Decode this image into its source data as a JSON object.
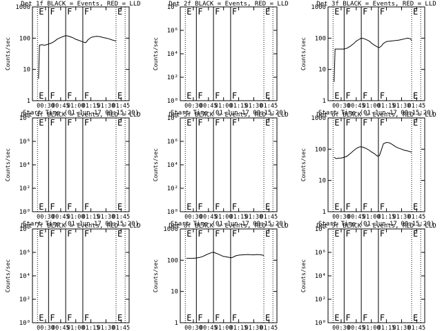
{
  "figure": {
    "xlabel": "Start Time (01-Jun-17 00:15:20)",
    "ylabel": "Counts/sec",
    "x_tick_labels": [
      "00:30",
      "00:45",
      "01:00",
      "01:15",
      "01:30",
      "01:45"
    ],
    "x_ticks_min": [
      30,
      45,
      60,
      75,
      90,
      105
    ],
    "x_range_min": [
      17,
      113
    ],
    "event_markers": [
      {
        "label": "E",
        "t": 22,
        "style": "dotted"
      },
      {
        "label": "F",
        "t": 33,
        "style": "solid"
      },
      {
        "label": "F",
        "t": 50,
        "style": "solid"
      },
      {
        "label": "F",
        "t": 67,
        "style": "solid"
      },
      {
        "label": "E",
        "t": 100,
        "style": "dotted"
      }
    ],
    "extra_dotted_line_min": 109
  },
  "chart_data": [
    {
      "type": "line",
      "title": "Det 1f BLACK = Events, RED = LLD",
      "y_scale": "log",
      "ylim": [
        1,
        1000
      ],
      "y_tick_labels": [
        "1",
        "10",
        "100",
        "1000"
      ],
      "series": [
        {
          "color": "#000000",
          "x": [
            23,
            24,
            25,
            26,
            28,
            30,
            33,
            36,
            39,
            42,
            45,
            48,
            50,
            52,
            55,
            58,
            60,
            63,
            66,
            68,
            70,
            72,
            75,
            78,
            81,
            84,
            87,
            90,
            93,
            96,
            99,
            100
          ],
          "y": [
            5,
            60,
            60,
            62,
            60,
            60,
            65,
            70,
            80,
            95,
            105,
            115,
            120,
            118,
            110,
            100,
            92,
            85,
            78,
            74,
            72,
            88,
            105,
            112,
            115,
            112,
            105,
            100,
            95,
            88,
            82,
            80
          ]
        }
      ]
    },
    {
      "type": "line",
      "title": "Det 2f BLACK = Events, RED = LLD",
      "y_scale": "log",
      "ylim": [
        1,
        100000000
      ],
      "y_tick_labels": [
        "10⁰",
        "10²",
        "10⁴",
        "10⁶",
        "10⁸"
      ],
      "series": []
    },
    {
      "type": "line",
      "title": "Det 3f BLACK = Events, RED = LLD",
      "y_scale": "log",
      "ylim": [
        1,
        1000
      ],
      "y_tick_labels": [
        "1",
        "10",
        "100",
        "1000"
      ],
      "series": [
        {
          "color": "#000000",
          "x": [
            23,
            24,
            25,
            26,
            28,
            30,
            33,
            36,
            39,
            42,
            45,
            48,
            50,
            52,
            55,
            58,
            60,
            63,
            66,
            68,
            70,
            72,
            75,
            78,
            81,
            84,
            87,
            90,
            93,
            96,
            99,
            100
          ],
          "y": [
            4,
            45,
            45,
            45,
            45,
            45,
            45,
            48,
            55,
            65,
            80,
            92,
            100,
            98,
            90,
            80,
            70,
            60,
            52,
            50,
            56,
            68,
            78,
            80,
            82,
            84,
            86,
            90,
            95,
            100,
            95,
            82
          ]
        }
      ]
    },
    {
      "type": "line",
      "title": "Det 4f BLACK = Events, RED = LLD",
      "y_scale": "log",
      "ylim": [
        1,
        100000000
      ],
      "y_tick_labels": [
        "10⁰",
        "10²",
        "10⁴",
        "10⁶",
        "10⁸"
      ],
      "series": []
    },
    {
      "type": "line",
      "title": "Det 5f BLACK = Events, RED = LLD",
      "y_scale": "log",
      "ylim": [
        1,
        100000000
      ],
      "y_tick_labels": [
        "10⁰",
        "10²",
        "10⁴",
        "10⁶",
        "10⁸"
      ],
      "series": []
    },
    {
      "type": "line",
      "title": "Det 6f BLACK = Events, RED = LLD",
      "y_scale": "log",
      "ylim": [
        1,
        1000
      ],
      "y_tick_labels": [
        "1",
        "10",
        "100",
        "1000"
      ],
      "series": [
        {
          "color": "#000000",
          "x": [
            23,
            25,
            28,
            30,
            33,
            36,
            39,
            42,
            45,
            48,
            50,
            52,
            55,
            58,
            60,
            63,
            66,
            68,
            70,
            72,
            75,
            78,
            81,
            84,
            87,
            90,
            93,
            96,
            99,
            100
          ],
          "y": [
            55,
            50,
            52,
            52,
            55,
            60,
            72,
            88,
            105,
            118,
            120,
            115,
            105,
            92,
            82,
            72,
            60,
            62,
            95,
            150,
            165,
            160,
            140,
            120,
            108,
            100,
            92,
            88,
            82,
            80
          ]
        }
      ]
    },
    {
      "type": "line",
      "title": "Det 7f BLACK = Events, RED = LLD",
      "y_scale": "log",
      "ylim": [
        1,
        100000000
      ],
      "y_tick_labels": [
        "10⁰",
        "10²",
        "10⁴",
        "10⁶",
        "10⁸"
      ],
      "series": []
    },
    {
      "type": "line",
      "title": "Det 8f BLACK = Events, RED = LLD",
      "y_scale": "log",
      "ylim": [
        1,
        1000
      ],
      "y_tick_labels": [
        "1",
        "10",
        "100",
        "1000"
      ],
      "series": [
        {
          "color": "#000000",
          "x": [
            23,
            26,
            30,
            33,
            36,
            39,
            42,
            45,
            48,
            50,
            52,
            55,
            58,
            60,
            63,
            66,
            68,
            70,
            72,
            75,
            78,
            81,
            84,
            87,
            90,
            93,
            96,
            99,
            100
          ],
          "y": [
            115,
            115,
            115,
            118,
            122,
            130,
            145,
            160,
            175,
            180,
            170,
            155,
            140,
            132,
            128,
            122,
            120,
            128,
            138,
            145,
            148,
            150,
            152,
            150,
            148,
            152,
            150,
            145,
            140
          ]
        }
      ]
    },
    {
      "type": "line",
      "title": "Det 9f BLACK = Events, RED = LLD",
      "y_scale": "log",
      "ylim": [
        1,
        100000000
      ],
      "y_tick_labels": [
        "10⁰",
        "10²",
        "10⁴",
        "10⁶",
        "10⁸"
      ],
      "series": []
    }
  ]
}
